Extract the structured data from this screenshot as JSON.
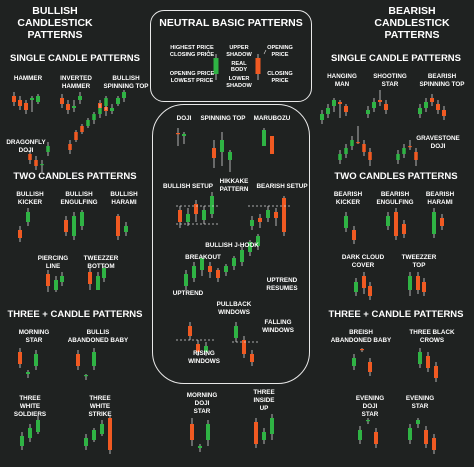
{
  "colors": {
    "background": "#1f2221",
    "bull": "#2fb344",
    "bear": "#f05a22",
    "wick": "#d9d9d9",
    "outline": "#e8e8e8"
  },
  "bullish": {
    "title_line1": "BULLISH",
    "title_line2": "CANDLESTICK",
    "title_line3": "PATTERNS",
    "single": {
      "heading": "SINGLE CANDLE PATTERNS",
      "hammer": "HAMMER",
      "inverted_hammer_1": "INVERTED",
      "inverted_hammer_2": "HAMMER",
      "spinning_top_1": "BULLISH",
      "spinning_top_2": "SPINNING TOP",
      "dragonfly_1": "DRAGONFLY",
      "dragonfly_2": "DOJI"
    },
    "two": {
      "heading": "TWO CANDLES PATTERNS",
      "kicker_1": "BULLISH",
      "kicker_2": "KICKER",
      "engulfing_1": "BULLISH",
      "engulfing_2": "ENGULFING",
      "harami_1": "BULLISH",
      "harami_2": "HARAMI",
      "piercing_1": "PIERCING",
      "piercing_2": "LINE",
      "tweezer_1": "TWEEZZER",
      "tweezer_2": "BOTTOM"
    },
    "three": {
      "heading": "THREE + CANDLE PATTERNS",
      "morning_1": "MORNING",
      "morning_2": "STAR",
      "abandoned_1": "BULLIS",
      "abandoned_2": "ABANDONED BABY",
      "soldiers_1": "THREE",
      "soldiers_2": "WHITE",
      "soldiers_3": "SOLDIERS",
      "strike_1": "THREE",
      "strike_2": "WHITE",
      "strike_3": "STRIKE"
    }
  },
  "neutral": {
    "title": "NEUTRAL BASIC PATTERNS",
    "high_open": "HIGHEST PRICE",
    "closing": "CLOSING PRICE",
    "opening_low": "OPENING PRICE",
    "lowest": "LOWEST PRICE",
    "upper_1": "UPPER",
    "upper_2": "SHADOW",
    "real_1": "REAL",
    "real_2": "BODY",
    "lower_1": "LOWER",
    "lower_2": "SHADOW",
    "right_opening_1": "OPENING",
    "right_opening_2": "PRICE",
    "right_closing_1": "CLOSING",
    "right_closing_2": "PRICE",
    "doji": "DOJI",
    "spinning": "SPINNING TOP",
    "marubozu": "MARUBOZU",
    "bull_setup": "BULLISH SETUP",
    "hikkake_1": "HIKKAKE",
    "hikkake_2": "PATTERN",
    "bear_setup": "BEARISH SETUP",
    "jhook": "BULLISH J-HOOK",
    "breakout": "BREAKOUT",
    "uptrend": "UPTREND",
    "resumes_1": "UPTREND",
    "resumes_2": "RESUMES",
    "pullback_1": "PULLBACK",
    "pullback_2": "WINDOWS",
    "falling_1": "FALLING",
    "falling_2": "WINDOWS",
    "rising_1": "RISING",
    "rising_2": "WINDOWS",
    "mds_1": "MORNING",
    "mds_2": "DOJI",
    "mds_3": "STAR",
    "tiu_1": "THREE",
    "tiu_2": "INSIDE",
    "tiu_3": "UP"
  },
  "bearish": {
    "title_line1": "BEARISH",
    "title_line2": "CANDLESTICK",
    "title_line3": "PATTERNS",
    "single": {
      "heading": "SINGLE CANDLE PATTERNS",
      "hanging_1": "HANGING",
      "hanging_2": "MAN",
      "shooting_1": "SHOOTING",
      "shooting_2": "STAR",
      "spinning_1": "BEARISH",
      "spinning_2": "SPINNING TOP",
      "gravestone_1": "GRAVESTONE",
      "gravestone_2": "DOJI"
    },
    "two": {
      "heading": "TWO CANDLES PATTERNS",
      "kicker_1": "BEARISH",
      "kicker_2": "KICKER",
      "engulfing_1": "BEARISH",
      "engulfing_2": "ENGULFING",
      "harami_1": "BEARISH",
      "harami_2": "HARAMI",
      "darkcloud_1": "DARK CLOUD",
      "darkcloud_2": "COVER",
      "tweezer_1": "TWEEZZER",
      "tweezer_2": "TOP"
    },
    "three": {
      "heading": "THREE + CANDLE PATTERNS",
      "abandoned_1": "BREISH",
      "abandoned_2": "ABANDONED BABY",
      "crows_1": "THREE BLACK",
      "crows_2": "CROWS",
      "evening_doji_1": "EVENING",
      "evening_doji_2": "DOJI",
      "evening_doji_3": "STAR",
      "evening_1": "EVENING",
      "evening_2": "STAR"
    }
  }
}
